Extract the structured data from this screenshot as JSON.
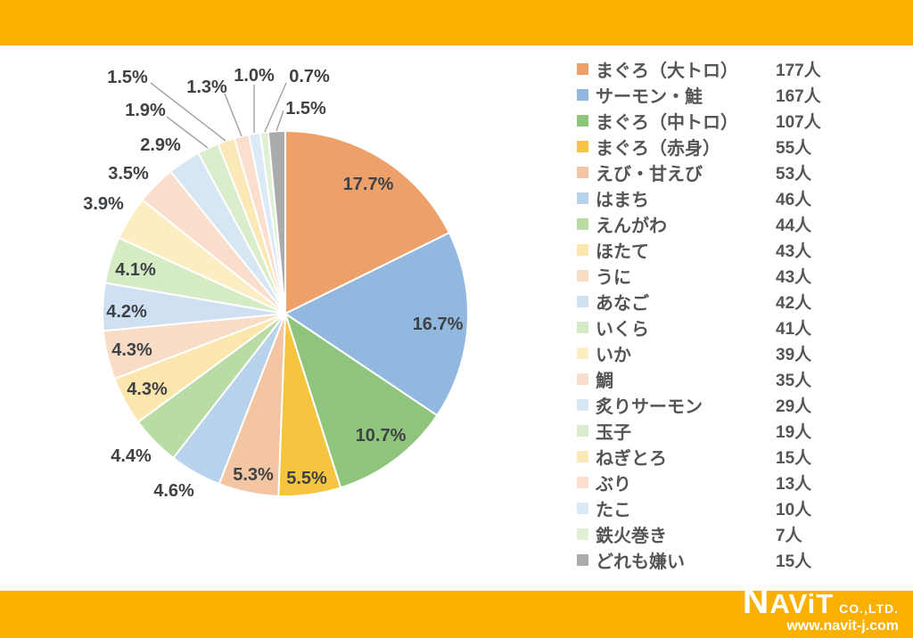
{
  "theme": {
    "band_color": "#F9B000",
    "pct_label_color": "#3F4245",
    "legend_text_color": "#555555",
    "leader_line_color": "#A6A6A6",
    "slice_border_color": "#FFFFFF"
  },
  "chart_data": {
    "type": "pie",
    "title": "",
    "unit": "人",
    "start_angle_deg": 0,
    "direction": "clockwise",
    "legend_position": "right",
    "items": [
      {
        "label": "まぐろ（大トロ）",
        "count": 177,
        "pct_label": "17.7%",
        "color": "#EDA069"
      },
      {
        "label": "サーモン・鮭",
        "count": 167,
        "pct_label": "16.7%",
        "color": "#93B8DF"
      },
      {
        "label": "まぐろ（中トロ）",
        "count": 107,
        "pct_label": "10.7%",
        "color": "#8FC47D"
      },
      {
        "label": "まぐろ（赤身）",
        "count": 55,
        "pct_label": "5.5%",
        "color": "#F6C53F"
      },
      {
        "label": "えび・甘えび",
        "count": 53,
        "pct_label": "5.3%",
        "color": "#F4C5A2"
      },
      {
        "label": "はまち",
        "count": 46,
        "pct_label": "4.6%",
        "color": "#B9D2EB"
      },
      {
        "label": "えんがわ",
        "count": 44,
        "pct_label": "4.4%",
        "color": "#B9DBA4"
      },
      {
        "label": "ほたて",
        "count": 43,
        "pct_label": "4.3%",
        "color": "#FBE7AE"
      },
      {
        "label": "うに",
        "count": 43,
        "pct_label": "4.3%",
        "color": "#F8DCC6"
      },
      {
        "label": "あなご",
        "count": 42,
        "pct_label": "4.2%",
        "color": "#CFE0F2"
      },
      {
        "label": "いくら",
        "count": 41,
        "pct_label": "4.1%",
        "color": "#D5EBC3"
      },
      {
        "label": "いか",
        "count": 39,
        "pct_label": "3.9%",
        "color": "#FCEDC3"
      },
      {
        "label": "鯛",
        "count": 35,
        "pct_label": "3.5%",
        "color": "#F9DECB"
      },
      {
        "label": "炙りサーモン",
        "count": 29,
        "pct_label": "2.9%",
        "color": "#D6E6F3"
      },
      {
        "label": "玉子",
        "count": 19,
        "pct_label": "1.9%",
        "color": "#DAEDCB"
      },
      {
        "label": "ねぎとろ",
        "count": 15,
        "pct_label": "1.5%",
        "color": "#FBE8B7"
      },
      {
        "label": "ぶり",
        "count": 13,
        "pct_label": "1.3%",
        "color": "#FADFCF"
      },
      {
        "label": "たこ",
        "count": 10,
        "pct_label": "1.0%",
        "color": "#DCE9F6"
      },
      {
        "label": "鉄火巻き",
        "count": 7,
        "pct_label": "0.7%",
        "color": "#DFF0D4"
      },
      {
        "label": "どれも嫌い",
        "count": 15,
        "pct_label": "1.5%",
        "color": "#ABABAB"
      }
    ]
  },
  "footer": {
    "brand": "NAViT",
    "company_suffix": "CO.,LTD.",
    "website": "www.navit-j.com"
  }
}
